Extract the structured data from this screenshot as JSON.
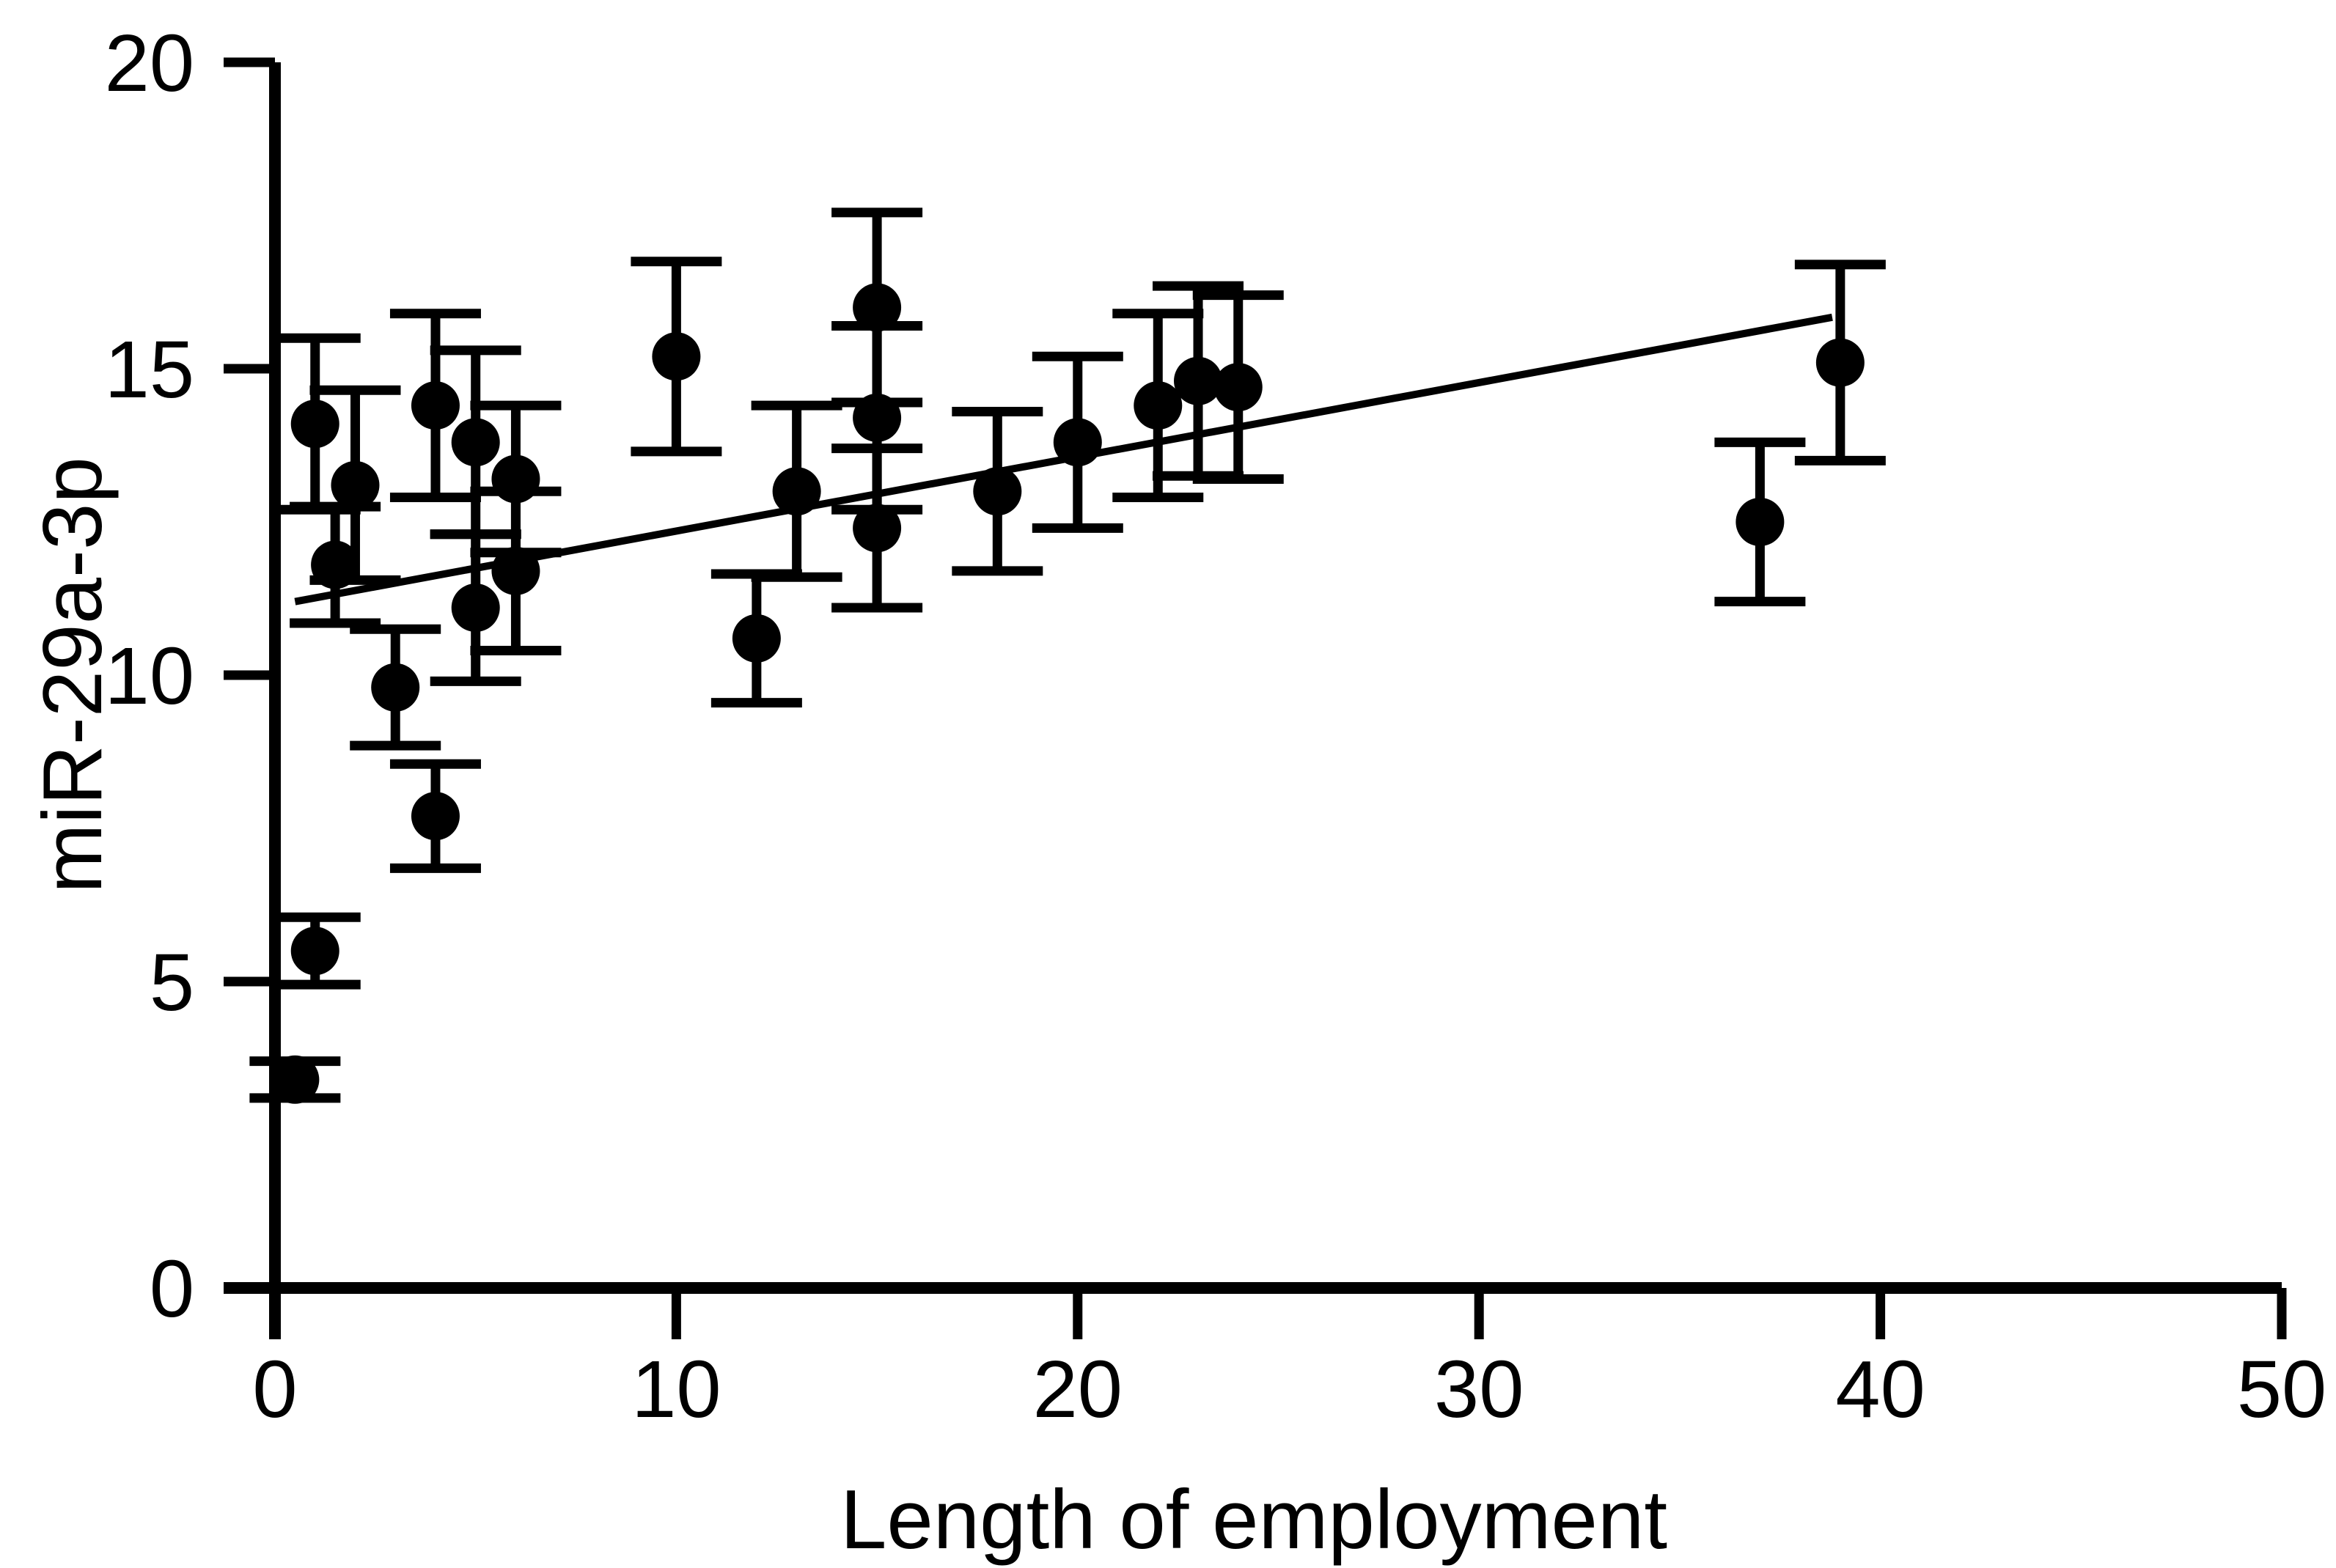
{
  "chart_data": {
    "type": "scatter",
    "title": "",
    "xlabel": "Length of employment",
    "ylabel": "miR-29a-3p",
    "xlim": [
      0,
      50
    ],
    "ylim": [
      0,
      20
    ],
    "xticks": [
      0,
      10,
      20,
      30,
      40,
      50
    ],
    "yticks": [
      0,
      5,
      10,
      15,
      20
    ],
    "grid": false,
    "legend": false,
    "background_color": "#ffffff",
    "axis_color": "#000000",
    "marker_color": "#000000",
    "marker_shape": "circle",
    "error_bar_style": "vertical symmetric with caps",
    "points": [
      {
        "x": 0.5,
        "y": 3.4,
        "e": 0.3
      },
      {
        "x": 1,
        "y": 5.5,
        "e": 0.55
      },
      {
        "x": 1,
        "y": 14.1,
        "e": 1.4
      },
      {
        "x": 1.5,
        "y": 11.8,
        "e": 0.95
      },
      {
        "x": 2,
        "y": 13.1,
        "e": 1.55
      },
      {
        "x": 3,
        "y": 9.8,
        "e": 0.95
      },
      {
        "x": 4,
        "y": 7.7,
        "e": 0.85
      },
      {
        "x": 4,
        "y": 14.4,
        "e": 1.5
      },
      {
        "x": 5,
        "y": 11.1,
        "e": 1.2
      },
      {
        "x": 5,
        "y": 13.8,
        "e": 1.5
      },
      {
        "x": 6,
        "y": 11.7,
        "e": 1.3
      },
      {
        "x": 6,
        "y": 13.2,
        "e": 1.2
      },
      {
        "x": 10,
        "y": 15.2,
        "e": 1.55
      },
      {
        "x": 12,
        "y": 10.6,
        "e": 1.05
      },
      {
        "x": 13,
        "y": 13.0,
        "e": 1.4
      },
      {
        "x": 15,
        "y": 12.4,
        "e": 1.3
      },
      {
        "x": 15,
        "y": 14.2,
        "e": 1.5
      },
      {
        "x": 15,
        "y": 16.0,
        "e": 1.55
      },
      {
        "x": 18,
        "y": 13.0,
        "e": 1.3
      },
      {
        "x": 20,
        "y": 13.8,
        "e": 1.4
      },
      {
        "x": 22,
        "y": 14.4,
        "e": 1.5
      },
      {
        "x": 23,
        "y": 14.8,
        "e": 1.55
      },
      {
        "x": 24,
        "y": 14.7,
        "e": 1.5
      },
      {
        "x": 37,
        "y": 12.5,
        "e": 1.3
      },
      {
        "x": 39,
        "y": 15.1,
        "e": 1.6
      }
    ],
    "trend_line": {
      "x1": 0.5,
      "y1": 11.2,
      "x2": 38.8,
      "y2": 15.84
    }
  }
}
